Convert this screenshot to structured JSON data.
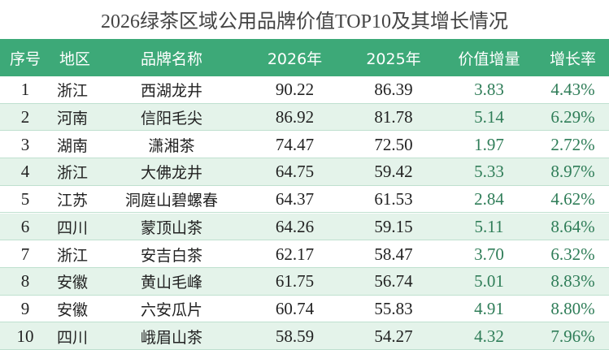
{
  "title": "2026绿茶区域公用品牌价值TOP10及其增长情况",
  "table": {
    "header": [
      "序号",
      "地区",
      "品牌名称",
      "2026年",
      "2025年",
      "价值增量",
      "增长率"
    ],
    "rows": [
      [
        "1",
        "浙江",
        "西湖龙井",
        "90.22",
        "86.39",
        "3.83",
        "4.43%"
      ],
      [
        "2",
        "河南",
        "信阳毛尖",
        "86.92",
        "81.78",
        "5.14",
        "6.29%"
      ],
      [
        "3",
        "湖南",
        "潇湘茶",
        "74.47",
        "72.50",
        "1.97",
        "2.72%"
      ],
      [
        "4",
        "浙江",
        "大佛龙井",
        "64.75",
        "59.42",
        "5.33",
        "8.97%"
      ],
      [
        "5",
        "江苏",
        "洞庭山碧螺春",
        "64.37",
        "61.53",
        "2.84",
        "4.62%"
      ],
      [
        "6",
        "四川",
        "蒙顶山茶",
        "64.26",
        "59.15",
        "5.11",
        "8.64%"
      ],
      [
        "7",
        "浙江",
        "安吉白茶",
        "62.17",
        "58.47",
        "3.70",
        "6.32%"
      ],
      [
        "8",
        "安徽",
        "黄山毛峰",
        "61.75",
        "56.74",
        "5.01",
        "8.83%"
      ],
      [
        "9",
        "安徽",
        "六安瓜片",
        "60.74",
        "55.83",
        "4.91",
        "8.80%"
      ],
      [
        "10",
        "四川",
        "峨眉山茶",
        "58.59",
        "54.27",
        "4.32",
        "7.96%"
      ]
    ]
  }
}
